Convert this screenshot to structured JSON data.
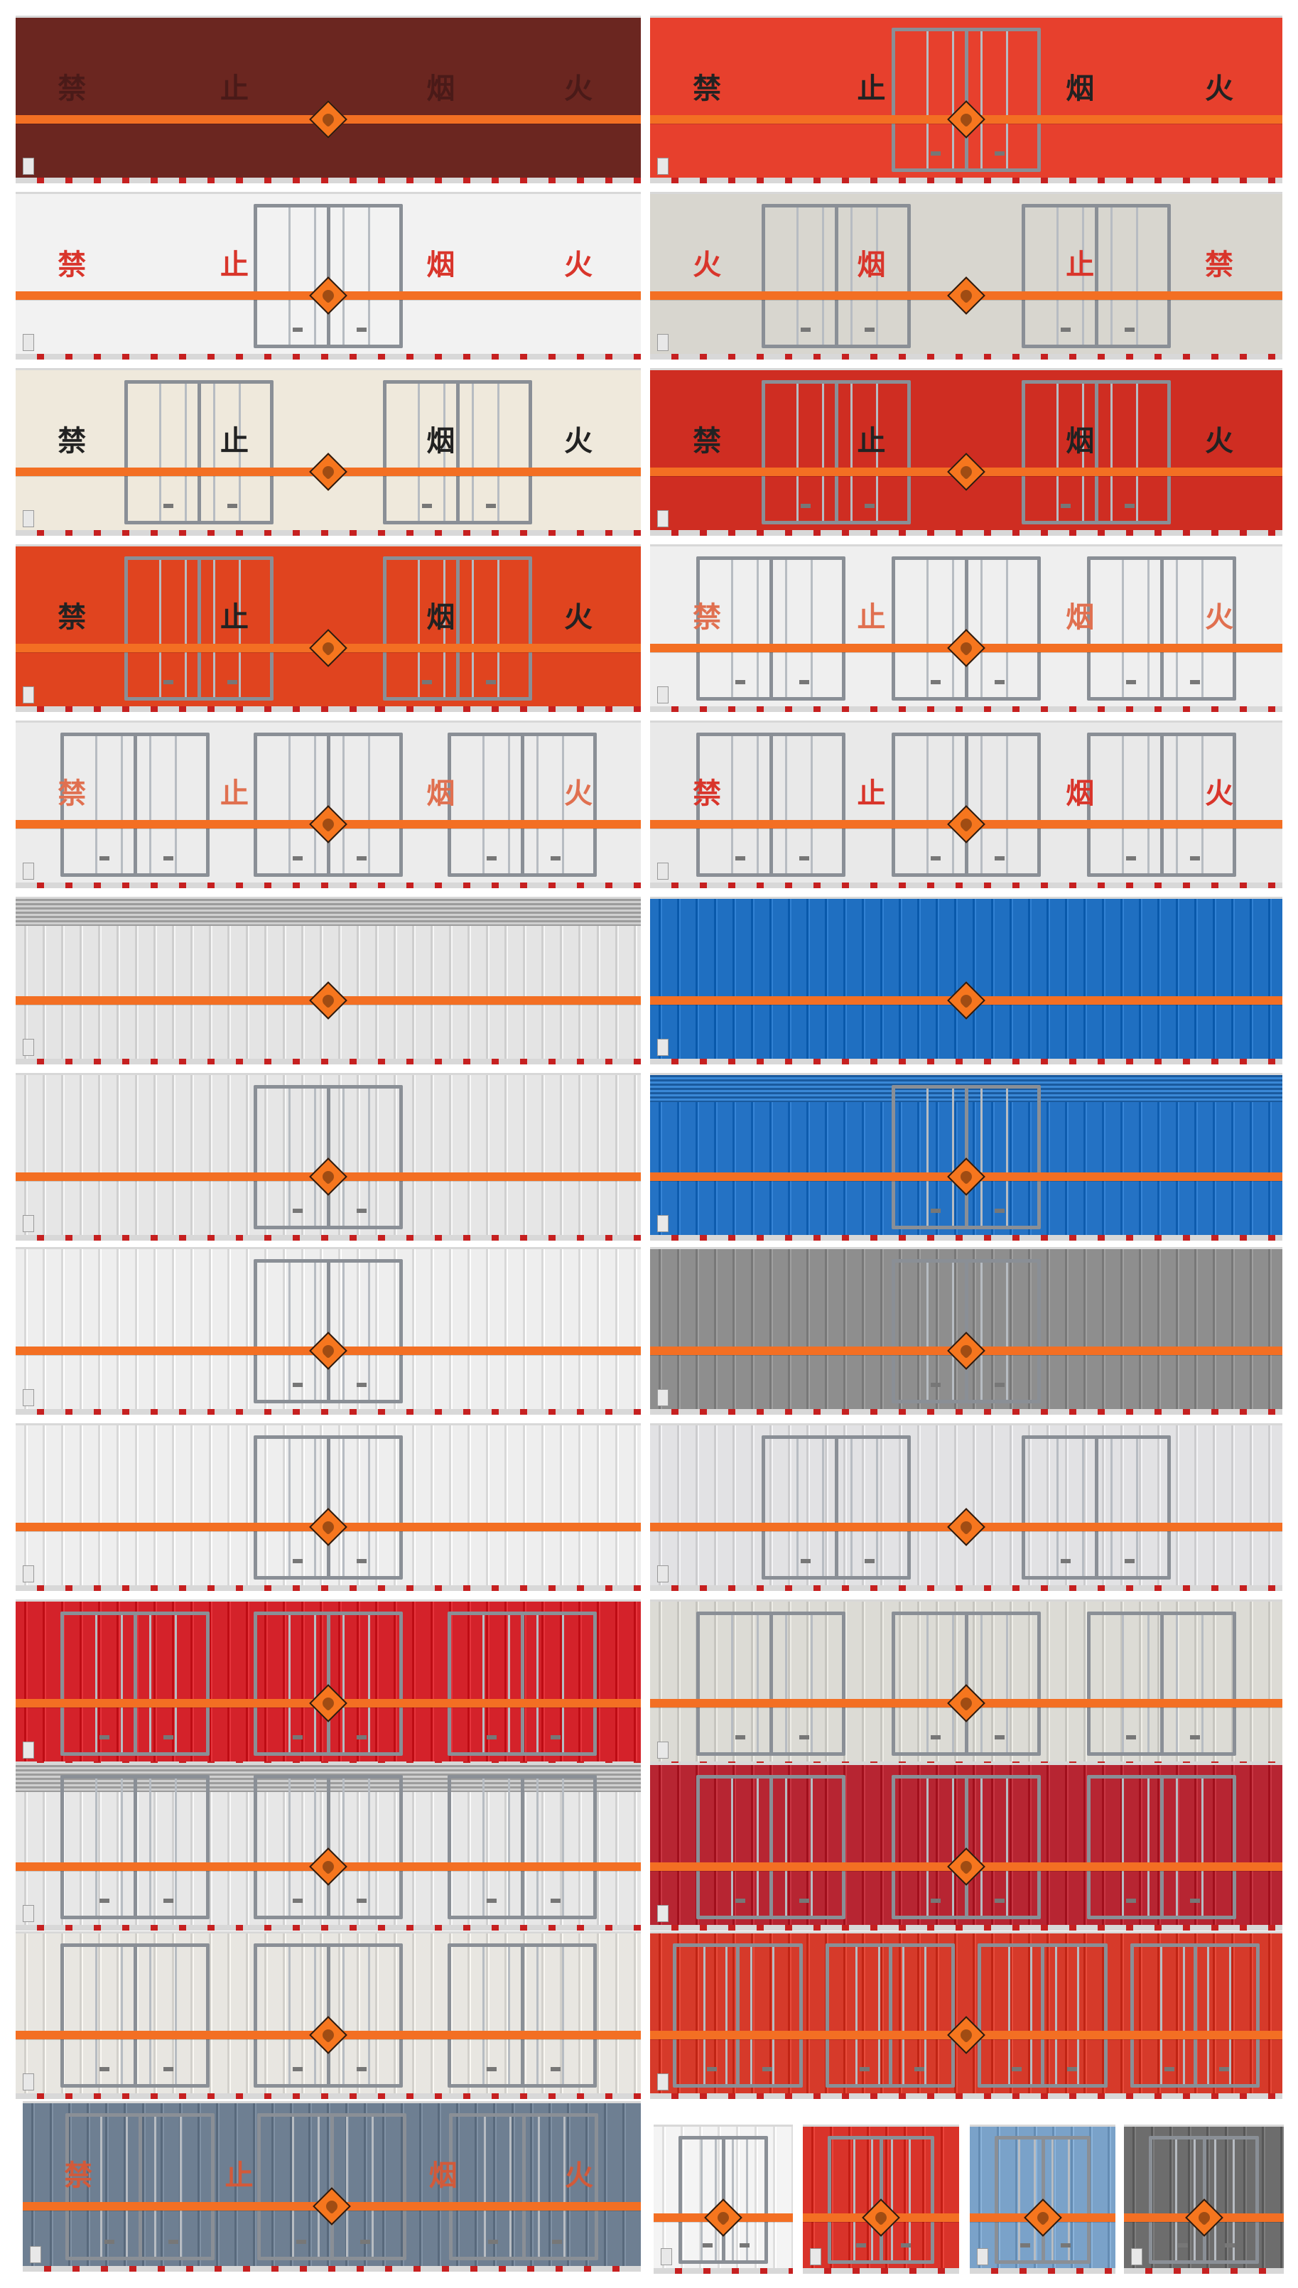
{
  "sign_glyphs": [
    "禁",
    "止",
    "烟",
    "火"
  ],
  "colors": {
    "orange_stripe": "#f36f23",
    "hazard_diamond": "#f6761e",
    "sign_text_dark": "#222222",
    "sign_text_red": "#d9352b"
  },
  "panels": [
    {
      "id": "p01",
      "color": "#6b2620",
      "ribs": false,
      "signs": [
        "禁",
        "止",
        "烟",
        "火"
      ],
      "sign_color": "#4a1a18",
      "doors": 0
    },
    {
      "id": "p02",
      "color": "#e7402d",
      "ribs": false,
      "signs": [
        "禁",
        "止",
        "烟",
        "火"
      ],
      "sign_color": "#222222",
      "doors": 1
    },
    {
      "id": "p03",
      "color": "#f2f2f2",
      "ribs": false,
      "signs": [
        "禁",
        "止",
        "烟",
        "火"
      ],
      "sign_color": "#d9352b",
      "doors": 1
    },
    {
      "id": "p04",
      "color": "#d8d6cf",
      "ribs": false,
      "signs": [
        "火",
        "烟",
        "止",
        "禁"
      ],
      "sign_color": "#d9352b",
      "doors": 2
    },
    {
      "id": "p05",
      "color": "#efe9dc",
      "ribs": false,
      "signs": [
        "禁",
        "止",
        "烟",
        "火"
      ],
      "sign_color": "#222222",
      "doors": 2
    },
    {
      "id": "p06",
      "color": "#cf2d22",
      "ribs": false,
      "signs": [
        "禁",
        "止",
        "烟",
        "火"
      ],
      "sign_color": "#222222",
      "doors": 2
    },
    {
      "id": "p07",
      "color": "#e0441f",
      "ribs": false,
      "signs": [
        "禁",
        "止",
        "烟",
        "火"
      ],
      "sign_color": "#222222",
      "doors": 2
    },
    {
      "id": "p08",
      "color": "#efefef",
      "ribs": false,
      "signs": [
        "禁",
        "止",
        "烟",
        "火"
      ],
      "sign_color": "#e07050",
      "doors": 3
    },
    {
      "id": "p09",
      "color": "#ececec",
      "ribs": false,
      "signs": [
        "禁",
        "止",
        "烟",
        "火"
      ],
      "sign_color": "#e07050",
      "doors": 3
    },
    {
      "id": "p10",
      "color": "#e9e9e9",
      "ribs": false,
      "signs": [
        "禁",
        "止",
        "烟",
        "火"
      ],
      "sign_color": "#d9352b",
      "doors": 3
    },
    {
      "id": "p11",
      "color": "#e4e4e4",
      "ribs": true,
      "louver": true,
      "signs": [],
      "doors": 0
    },
    {
      "id": "p12",
      "color": "#1f6fc1",
      "ribs": true,
      "louver": false,
      "signs": [],
      "doors": 0
    },
    {
      "id": "p13",
      "color": "#e6e6e6",
      "ribs": true,
      "signs": [],
      "doors": 1
    },
    {
      "id": "p14",
      "color": "#2472c4",
      "ribs": true,
      "louver": true,
      "signs": [],
      "doors": 1
    },
    {
      "id": "p15",
      "color": "#eeeeee",
      "ribs": true,
      "signs": [],
      "doors": 1
    },
    {
      "id": "p16",
      "color": "#8e8e8e",
      "ribs": true,
      "signs": [],
      "doors": 1
    },
    {
      "id": "p17",
      "color": "#eeeeee",
      "ribs": true,
      "signs": [],
      "doors": 1
    },
    {
      "id": "p18",
      "color": "#e2e2e4",
      "ribs": true,
      "signs": [],
      "doors": 2
    },
    {
      "id": "p19",
      "color": "#d4222a",
      "ribs": true,
      "signs": [],
      "doors": 3
    },
    {
      "id": "p20",
      "color": "#dcdbd5",
      "ribs": true,
      "signs": [],
      "doors": 3
    },
    {
      "id": "p21",
      "color": "#e7e7e7",
      "ribs": true,
      "louver": true,
      "signs": [],
      "doors": 3
    },
    {
      "id": "p22",
      "color": "#b72532",
      "ribs": true,
      "signs": [],
      "doors": 3
    },
    {
      "id": "p23",
      "color": "#e8e6e1",
      "ribs": true,
      "signs": [],
      "doors": 3
    },
    {
      "id": "p24",
      "color": "#d63a2a",
      "ribs": true,
      "signs": [],
      "doors": 4
    },
    {
      "id": "p25",
      "color": "#6e7f92",
      "ribs": true,
      "signs": [
        "禁",
        "止",
        "烟",
        "火"
      ],
      "sign_color": "#d25a3a",
      "doors": 3
    },
    {
      "id": "p26",
      "color": "#f4f4f4",
      "ribs": true,
      "signs": [],
      "doors": 1
    },
    {
      "id": "p27",
      "color": "#d9332a",
      "ribs": true,
      "signs": [],
      "doors": 1
    },
    {
      "id": "p28",
      "color": "#7aa2c9",
      "ribs": true,
      "signs": [],
      "doors": 1
    },
    {
      "id": "p29",
      "color": "#6d6d6d",
      "ribs": true,
      "signs": [],
      "doors": 1
    }
  ]
}
